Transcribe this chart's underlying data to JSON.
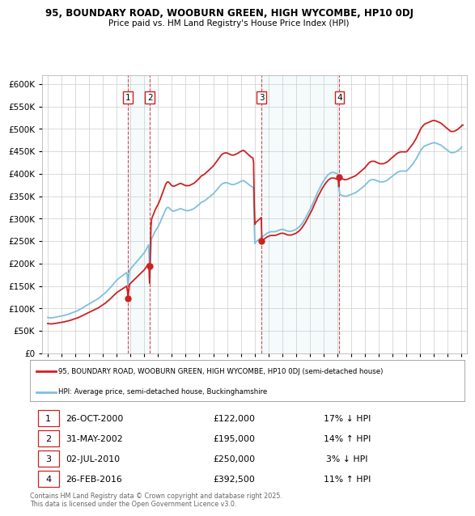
{
  "title1": "95, BOUNDARY ROAD, WOOBURN GREEN, HIGH WYCOMBE, HP10 0DJ",
  "title2": "Price paid vs. HM Land Registry's House Price Index (HPI)",
  "background_color": "#ffffff",
  "plot_bg_color": "#ffffff",
  "grid_color": "#cccccc",
  "hpi_color": "#7fbfdf",
  "price_color": "#cc2222",
  "legend_label_price": "95, BOUNDARY ROAD, WOOBURN GREEN, HIGH WYCOMBE, HP10 0DJ (semi-detached house)",
  "legend_label_hpi": "HPI: Average price, semi-detached house, Buckinghamshire",
  "footer": "Contains HM Land Registry data © Crown copyright and database right 2025.\nThis data is licensed under the Open Government Licence v3.0.",
  "xmin": 1994.6,
  "xmax": 2025.4,
  "ymin": 0,
  "ymax": 620000,
  "yticks": [
    0,
    50000,
    100000,
    150000,
    200000,
    250000,
    300000,
    350000,
    400000,
    450000,
    500000,
    550000,
    600000
  ],
  "xticks": [
    1995,
    1996,
    1997,
    1998,
    1999,
    2000,
    2001,
    2002,
    2003,
    2004,
    2005,
    2006,
    2007,
    2008,
    2009,
    2010,
    2011,
    2012,
    2013,
    2014,
    2015,
    2016,
    2017,
    2018,
    2019,
    2020,
    2021,
    2022,
    2023,
    2024,
    2025
  ],
  "t1_yr": 2000.82,
  "t1_p": 122000,
  "t2_yr": 2002.41,
  "t2_p": 195000,
  "t3_yr": 2010.5,
  "t3_p": 250000,
  "t4_yr": 2016.15,
  "t4_p": 392500,
  "hpi_years": [
    1995.0,
    1995.08,
    1995.17,
    1995.25,
    1995.33,
    1995.42,
    1995.5,
    1995.58,
    1995.67,
    1995.75,
    1995.83,
    1995.92,
    1996.0,
    1996.08,
    1996.17,
    1996.25,
    1996.33,
    1996.42,
    1996.5,
    1996.58,
    1996.67,
    1996.75,
    1996.83,
    1996.92,
    1997.0,
    1997.08,
    1997.17,
    1997.25,
    1997.33,
    1997.42,
    1997.5,
    1997.58,
    1997.67,
    1997.75,
    1997.83,
    1997.92,
    1998.0,
    1998.08,
    1998.17,
    1998.25,
    1998.33,
    1998.42,
    1998.5,
    1998.58,
    1998.67,
    1998.75,
    1998.83,
    1998.92,
    1999.0,
    1999.08,
    1999.17,
    1999.25,
    1999.33,
    1999.42,
    1999.5,
    1999.58,
    1999.67,
    1999.75,
    1999.83,
    1999.92,
    2000.0,
    2000.08,
    2000.17,
    2000.25,
    2000.33,
    2000.42,
    2000.5,
    2000.58,
    2000.67,
    2000.75,
    2000.82,
    2000.92,
    2001.0,
    2001.08,
    2001.17,
    2001.25,
    2001.33,
    2001.42,
    2001.5,
    2001.58,
    2001.67,
    2001.75,
    2001.83,
    2001.92,
    2002.0,
    2002.08,
    2002.17,
    2002.25,
    2002.33,
    2002.41,
    2002.5,
    2002.58,
    2002.67,
    2002.75,
    2002.83,
    2002.92,
    2003.0,
    2003.08,
    2003.17,
    2003.25,
    2003.33,
    2003.42,
    2003.5,
    2003.58,
    2003.67,
    2003.75,
    2003.83,
    2003.92,
    2004.0,
    2004.08,
    2004.17,
    2004.25,
    2004.33,
    2004.42,
    2004.5,
    2004.58,
    2004.67,
    2004.75,
    2004.83,
    2004.92,
    2005.0,
    2005.08,
    2005.17,
    2005.25,
    2005.33,
    2005.42,
    2005.5,
    2005.58,
    2005.67,
    2005.75,
    2005.83,
    2005.92,
    2006.0,
    2006.08,
    2006.17,
    2006.25,
    2006.33,
    2006.42,
    2006.5,
    2006.58,
    2006.67,
    2006.75,
    2006.83,
    2006.92,
    2007.0,
    2007.08,
    2007.17,
    2007.25,
    2007.33,
    2007.42,
    2007.5,
    2007.58,
    2007.67,
    2007.75,
    2007.83,
    2007.92,
    2008.0,
    2008.08,
    2008.17,
    2008.25,
    2008.33,
    2008.42,
    2008.5,
    2008.58,
    2008.67,
    2008.75,
    2008.83,
    2008.92,
    2009.0,
    2009.08,
    2009.17,
    2009.25,
    2009.33,
    2009.42,
    2009.5,
    2009.58,
    2009.67,
    2009.75,
    2009.83,
    2009.92,
    2010.0,
    2010.08,
    2010.17,
    2010.25,
    2010.33,
    2010.42,
    2010.5,
    2010.58,
    2010.67,
    2010.75,
    2010.83,
    2010.92,
    2011.0,
    2011.08,
    2011.17,
    2011.25,
    2011.33,
    2011.42,
    2011.5,
    2011.58,
    2011.67,
    2011.75,
    2011.83,
    2011.92,
    2012.0,
    2012.08,
    2012.17,
    2012.25,
    2012.33,
    2012.42,
    2012.5,
    2012.58,
    2012.67,
    2012.75,
    2012.83,
    2012.92,
    2013.0,
    2013.08,
    2013.17,
    2013.25,
    2013.33,
    2013.42,
    2013.5,
    2013.58,
    2013.67,
    2013.75,
    2013.83,
    2013.92,
    2014.0,
    2014.08,
    2014.17,
    2014.25,
    2014.33,
    2014.42,
    2014.5,
    2014.58,
    2014.67,
    2014.75,
    2014.83,
    2014.92,
    2015.0,
    2015.08,
    2015.17,
    2015.25,
    2015.33,
    2015.42,
    2015.5,
    2015.58,
    2015.67,
    2015.75,
    2015.83,
    2015.92,
    2016.0,
    2016.08,
    2016.15,
    2016.25,
    2016.33,
    2016.42,
    2016.5,
    2016.58,
    2016.67,
    2016.75,
    2016.83,
    2016.92,
    2017.0,
    2017.08,
    2017.17,
    2017.25,
    2017.33,
    2017.42,
    2017.5,
    2017.58,
    2017.67,
    2017.75,
    2017.83,
    2017.92,
    2018.0,
    2018.08,
    2018.17,
    2018.25,
    2018.33,
    2018.42,
    2018.5,
    2018.58,
    2018.67,
    2018.75,
    2018.83,
    2018.92,
    2019.0,
    2019.08,
    2019.17,
    2019.25,
    2019.33,
    2019.42,
    2019.5,
    2019.58,
    2019.67,
    2019.75,
    2019.83,
    2019.92,
    2020.0,
    2020.08,
    2020.17,
    2020.25,
    2020.33,
    2020.42,
    2020.5,
    2020.58,
    2020.67,
    2020.75,
    2020.83,
    2020.92,
    2021.0,
    2021.08,
    2021.17,
    2021.25,
    2021.33,
    2021.42,
    2021.5,
    2021.58,
    2021.67,
    2021.75,
    2021.83,
    2021.92,
    2022.0,
    2022.08,
    2022.17,
    2022.25,
    2022.33,
    2022.42,
    2022.5,
    2022.58,
    2022.67,
    2022.75,
    2022.83,
    2022.92,
    2023.0,
    2023.08,
    2023.17,
    2023.25,
    2023.33,
    2023.42,
    2023.5,
    2023.58,
    2023.67,
    2023.75,
    2023.83,
    2023.92,
    2024.0,
    2024.08,
    2024.17,
    2024.25,
    2024.33,
    2024.42,
    2024.5,
    2024.58,
    2024.67,
    2024.75,
    2024.83,
    2024.92,
    2025.0
  ],
  "hpi_values": [
    80000,
    79500,
    79200,
    79000,
    79200,
    79500,
    80000,
    80500,
    81000,
    81500,
    82000,
    82500,
    83000,
    83500,
    84200,
    85000,
    85800,
    86500,
    87200,
    88000,
    89000,
    90000,
    91000,
    92000,
    93000,
    94000,
    95000,
    96500,
    98000,
    99500,
    101000,
    102500,
    104000,
    105500,
    107000,
    108500,
    110000,
    111500,
    113000,
    114500,
    116000,
    117500,
    119000,
    120500,
    122000,
    124000,
    126000,
    128000,
    130000,
    132000,
    134500,
    137000,
    139500,
    142000,
    145000,
    148000,
    151000,
    154000,
    157000,
    160000,
    163000,
    165000,
    167000,
    169000,
    171000,
    173000,
    175000,
    177000,
    179000,
    181000,
    147000,
    185000,
    188000,
    191000,
    194000,
    197000,
    200000,
    203000,
    206000,
    209000,
    212000,
    215000,
    218000,
    221000,
    224000,
    228000,
    233000,
    238000,
    243000,
    166000,
    253000,
    258000,
    264000,
    270000,
    274000,
    278000,
    282000,
    287000,
    293000,
    299000,
    305000,
    311000,
    317000,
    322000,
    325000,
    325000,
    323000,
    320000,
    318000,
    317000,
    317000,
    318000,
    319000,
    320000,
    321000,
    322000,
    322000,
    321000,
    320000,
    319000,
    318000,
    318000,
    318000,
    318000,
    319000,
    320000,
    321000,
    322000,
    324000,
    326000,
    328000,
    330000,
    332000,
    335000,
    337000,
    338000,
    339000,
    341000,
    343000,
    345000,
    347000,
    349000,
    351000,
    353000,
    355000,
    358000,
    361000,
    364000,
    367000,
    370000,
    373000,
    376000,
    378000,
    379000,
    380000,
    380000,
    380000,
    379000,
    378000,
    377000,
    376000,
    376000,
    376000,
    377000,
    378000,
    379000,
    380000,
    382000,
    383000,
    384000,
    385000,
    384000,
    382000,
    380000,
    378000,
    376000,
    374000,
    372000,
    371000,
    370000,
    243000,
    248000,
    250000,
    252000,
    254000,
    256000,
    258000,
    260000,
    262000,
    264000,
    266000,
    268000,
    269000,
    270000,
    271000,
    271000,
    271000,
    271000,
    271000,
    272000,
    273000,
    274000,
    275000,
    276000,
    276000,
    276000,
    275000,
    274000,
    273000,
    272000,
    272000,
    272000,
    272000,
    273000,
    274000,
    275000,
    276000,
    278000,
    280000,
    282000,
    285000,
    288000,
    292000,
    296000,
    300000,
    305000,
    310000,
    315000,
    320000,
    325000,
    330000,
    336000,
    342000,
    348000,
    354000,
    360000,
    365000,
    370000,
    375000,
    380000,
    384000,
    388000,
    392000,
    395000,
    398000,
    400000,
    402000,
    403000,
    403000,
    403000,
    402000,
    401000,
    400000,
    399000,
    355000,
    353000,
    352000,
    351000,
    350000,
    350000,
    350000,
    351000,
    352000,
    353000,
    354000,
    355000,
    356000,
    357000,
    358000,
    360000,
    362000,
    364000,
    366000,
    368000,
    370000,
    372000,
    374000,
    377000,
    380000,
    383000,
    385000,
    386000,
    387000,
    387000,
    387000,
    386000,
    385000,
    384000,
    383000,
    382000,
    382000,
    382000,
    382000,
    383000,
    384000,
    385000,
    387000,
    389000,
    391000,
    393000,
    395000,
    397000,
    399000,
    401000,
    403000,
    404000,
    405000,
    406000,
    406000,
    406000,
    406000,
    406000,
    406000,
    408000,
    411000,
    414000,
    417000,
    420000,
    423000,
    427000,
    431000,
    435000,
    440000,
    445000,
    450000,
    454000,
    457000,
    460000,
    462000,
    463000,
    464000,
    465000,
    466000,
    467000,
    468000,
    469000,
    469000,
    469000,
    468000,
    467000,
    466000,
    465000,
    464000,
    462000,
    460000,
    458000,
    456000,
    454000,
    452000,
    450000,
    448000,
    447000,
    447000,
    447000,
    448000,
    449000,
    450000,
    452000,
    454000,
    456000,
    458000,
    459000,
    460000,
    461000,
    461000,
    461000,
    461000,
    460000,
    460000,
    460000,
    460000,
    460000,
    460000
  ]
}
